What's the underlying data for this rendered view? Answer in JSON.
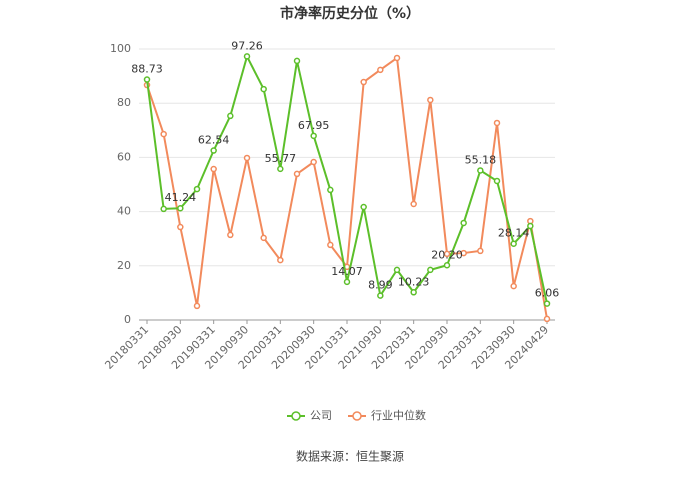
{
  "chart_data": {
    "type": "line",
    "title": "市净率历史分位（%）",
    "categories": [
      "20180331",
      null,
      "20180930",
      null,
      "20190331",
      null,
      "20190930",
      null,
      "20200331",
      null,
      "20200930",
      null,
      "20210331",
      null,
      "20210930",
      null,
      "20220331",
      null,
      "20220930",
      null,
      "20230331",
      null,
      "20230930",
      null,
      "20240429"
    ],
    "series": [
      {
        "name": "公司",
        "color": "#5cbf2a",
        "values": [
          88.73,
          41.0,
          41.24,
          48.3,
          62.54,
          75.3,
          97.26,
          85.2,
          55.77,
          95.6,
          67.95,
          48.0,
          14.07,
          41.7,
          8.99,
          18.5,
          10.23,
          18.5,
          20.2,
          35.8,
          55.18,
          51.3,
          28.14,
          34.7,
          6.06
        ],
        "value_labels": [
          "88.73",
          null,
          "41.24",
          null,
          "62.54",
          null,
          "97.26",
          null,
          "55.77",
          null,
          "67.95",
          null,
          "14.07",
          null,
          "8.99",
          null,
          "10.23",
          null,
          "20.20",
          null,
          "55.18",
          null,
          "28.14",
          null,
          "6.06"
        ]
      },
      {
        "name": "行业中位数",
        "color": "#f28a5c",
        "values": [
          86.7,
          68.6,
          34.3,
          5.2,
          55.7,
          31.4,
          59.8,
          30.3,
          22.1,
          53.9,
          58.3,
          27.7,
          19.6,
          87.8,
          92.3,
          96.7,
          42.8,
          81.2,
          24.4,
          24.7,
          25.5,
          72.7,
          12.5,
          36.5,
          0.4
        ]
      }
    ],
    "ylim": [
      0,
      100
    ],
    "yticks": [
      0,
      20,
      40,
      60,
      80,
      100
    ],
    "grid": true,
    "source": "数据来源：恒生聚源"
  }
}
